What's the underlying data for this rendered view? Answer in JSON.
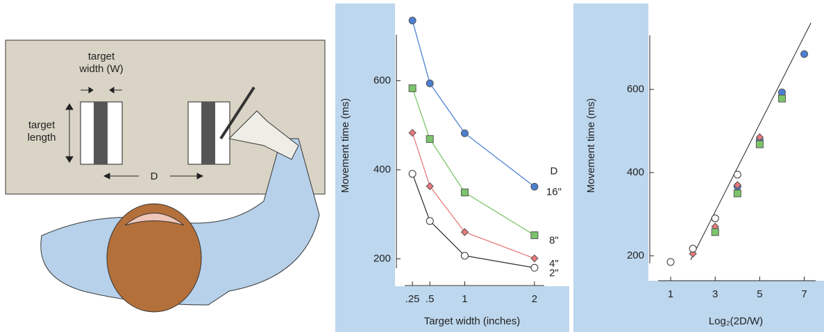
{
  "illustration": {
    "target_width": [
      "target",
      "width (W)"
    ],
    "target_length": [
      "target",
      "length"
    ],
    "distance": "D"
  },
  "chart_data": [
    {
      "type": "line",
      "xlabel": "Target width (inches)",
      "ylabel": "Movement time (ms)",
      "legend_title": "D",
      "xlim": [
        0,
        2.2
      ],
      "ylim": [
        140,
        750
      ],
      "xticks": [
        {
          "value": 0.25,
          "label": ".25"
        },
        {
          "value": 0.5,
          "label": ".5"
        },
        1,
        2
      ],
      "yticks": [
        200,
        400,
        600
      ],
      "x": [
        0.25,
        0.5,
        1,
        2
      ],
      "series": [
        {
          "name": "16\"",
          "color": "#4a7fd1",
          "marker": "circle",
          "values": [
            735,
            594,
            482,
            362
          ]
        },
        {
          "name": "8\"",
          "color": "#7cc46a",
          "marker": "square",
          "values": [
            583,
            469,
            349,
            253
          ]
        },
        {
          "name": "4\"",
          "color": "#e8797a",
          "marker": "diamond",
          "values": [
            483,
            363,
            260,
            201
          ]
        },
        {
          "name": "2\"",
          "color": "#ffffff",
          "marker": "circle",
          "values": [
            391,
            285,
            207,
            180
          ]
        }
      ]
    },
    {
      "type": "scatter",
      "xlabel": "Log₂(2D/W)",
      "ylabel": "Movement time (ms)",
      "xlim": [
        0,
        7.7
      ],
      "ylim": [
        140,
        780
      ],
      "xticks": [
        1,
        3,
        5,
        7
      ],
      "yticks": [
        200,
        400,
        600
      ],
      "series": [
        {
          "color": "#4a7fd1",
          "marker": "circle",
          "x": [
            7,
            6,
            5,
            4
          ],
          "values": [
            685,
            593,
            478,
            367
          ]
        },
        {
          "color": "#e8797a",
          "marker": "diamond",
          "x": [
            5,
            4,
            3,
            2
          ],
          "values": [
            485,
            370,
            270,
            205
          ]
        },
        {
          "color": "#7cc46a",
          "marker": "square",
          "x": [
            6,
            5,
            4,
            3
          ],
          "values": [
            578,
            468,
            350,
            257
          ]
        },
        {
          "color": "#ffffff",
          "marker": "circle",
          "x": [
            4,
            3,
            2,
            1
          ],
          "values": [
            395,
            290,
            217,
            185
          ]
        }
      ],
      "trend_line": {
        "x": [
          1.9,
          7.3
        ],
        "values": [
          190,
          760
        ]
      }
    }
  ]
}
